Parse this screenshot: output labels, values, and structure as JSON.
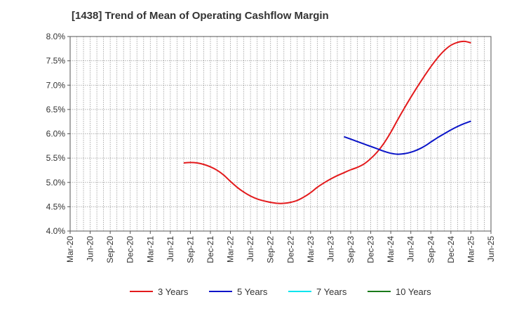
{
  "chart_data": {
    "type": "line",
    "title": "[1438]  Trend of Mean of Operating Cashflow Margin",
    "xlabel": "",
    "ylabel": "",
    "x_tick_labels": [
      "Mar-20",
      "Jun-20",
      "Sep-20",
      "Dec-20",
      "Mar-21",
      "Jun-21",
      "Sep-21",
      "Dec-21",
      "Mar-22",
      "Jun-22",
      "Sep-22",
      "Dec-22",
      "Mar-23",
      "Jun-23",
      "Sep-23",
      "Dec-23",
      "Mar-24",
      "Jun-24",
      "Sep-24",
      "Dec-24",
      "Mar-25",
      "Jun-25"
    ],
    "y_tick_labels": [
      "4.0%",
      "4.5%",
      "5.0%",
      "5.5%",
      "6.0%",
      "6.5%",
      "7.0%",
      "7.5%",
      "8.0%"
    ],
    "ylim": [
      4.0,
      8.0
    ],
    "y_unit": "%",
    "grid": true,
    "legend_position": "bottom",
    "series": [
      {
        "name": "3 Years",
        "color": "#e31a1c",
        "x": [
          "Aug-21",
          "Sep-21",
          "Oct-21",
          "Nov-21",
          "Dec-21",
          "Jan-22",
          "Feb-22",
          "Mar-22",
          "Apr-22",
          "May-22",
          "Jun-22",
          "Jul-22",
          "Aug-22",
          "Sep-22",
          "Oct-22",
          "Nov-22",
          "Dec-22",
          "Jan-23",
          "Feb-23",
          "Mar-23",
          "Apr-23",
          "May-23",
          "Jun-23",
          "Jul-23",
          "Aug-23",
          "Sep-23",
          "Oct-23",
          "Nov-23",
          "Dec-23",
          "Jan-24",
          "Feb-24",
          "Mar-24",
          "Apr-24",
          "May-24",
          "Jun-24",
          "Jul-24",
          "Aug-24",
          "Sep-24",
          "Oct-24",
          "Nov-24",
          "Dec-24",
          "Jan-25",
          "Feb-25",
          "Mar-25"
        ],
        "values": [
          5.4,
          5.41,
          5.4,
          5.37,
          5.32,
          5.25,
          5.15,
          5.02,
          4.9,
          4.8,
          4.72,
          4.66,
          4.62,
          4.59,
          4.57,
          4.57,
          4.59,
          4.63,
          4.7,
          4.79,
          4.9,
          4.99,
          5.07,
          5.14,
          5.2,
          5.26,
          5.31,
          5.38,
          5.49,
          5.63,
          5.81,
          6.03,
          6.28,
          6.52,
          6.75,
          6.97,
          7.18,
          7.38,
          7.56,
          7.71,
          7.82,
          7.88,
          7.9,
          7.87
        ]
      },
      {
        "name": "5 Years",
        "color": "#0a14c8",
        "x": [
          "Aug-23",
          "Sep-23",
          "Oct-23",
          "Nov-23",
          "Dec-23",
          "Jan-24",
          "Feb-24",
          "Mar-24",
          "Apr-24",
          "May-24",
          "Jun-24",
          "Jul-24",
          "Aug-24",
          "Sep-24",
          "Oct-24",
          "Nov-24",
          "Dec-24",
          "Jan-25",
          "Feb-25",
          "Mar-25"
        ],
        "values": [
          5.94,
          5.89,
          5.84,
          5.79,
          5.74,
          5.69,
          5.64,
          5.6,
          5.58,
          5.59,
          5.62,
          5.67,
          5.74,
          5.83,
          5.92,
          6.0,
          6.08,
          6.15,
          6.21,
          6.26
        ]
      },
      {
        "name": "7 Years",
        "color": "#00e5ee",
        "x": [],
        "values": []
      },
      {
        "name": "10 Years",
        "color": "#1a7a1a",
        "x": [],
        "values": []
      }
    ]
  }
}
